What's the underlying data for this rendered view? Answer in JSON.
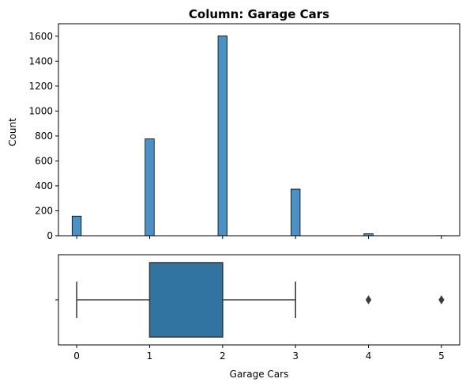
{
  "chart_data": [
    {
      "type": "bar",
      "title": "Column: Garage Cars",
      "xlabel": "",
      "ylabel": "Count",
      "ylim": [
        0,
        1700
      ],
      "xlim": [
        -0.25,
        5.25
      ],
      "yticks": [
        0,
        200,
        400,
        600,
        800,
        1000,
        1200,
        1400,
        1600
      ],
      "xticks": [
        0,
        1,
        2,
        3,
        4,
        5
      ],
      "x_tick_labels_shown": false,
      "bin_width": 0.125,
      "bars": [
        {
          "x": 0,
          "value": 157
        },
        {
          "x": 1,
          "value": 777
        },
        {
          "x": 2,
          "value": 1603
        },
        {
          "x": 3,
          "value": 374
        },
        {
          "x": 4,
          "value": 16
        },
        {
          "x": 5,
          "value": 1
        }
      ],
      "color": "#4c91c6",
      "edge_color": "#000000",
      "grid": false
    },
    {
      "type": "boxplot",
      "xlabel": "Garage Cars",
      "xlim": [
        -0.25,
        5.25
      ],
      "xticks": [
        0,
        1,
        2,
        3,
        4,
        5
      ],
      "whisker_low": 0,
      "q1": 1,
      "median": 2,
      "q3": 2,
      "whisker_high": 3,
      "outliers": [
        4,
        5
      ],
      "color": "#3274a1",
      "line_color": "#3d3d3d",
      "grid": false
    }
  ]
}
